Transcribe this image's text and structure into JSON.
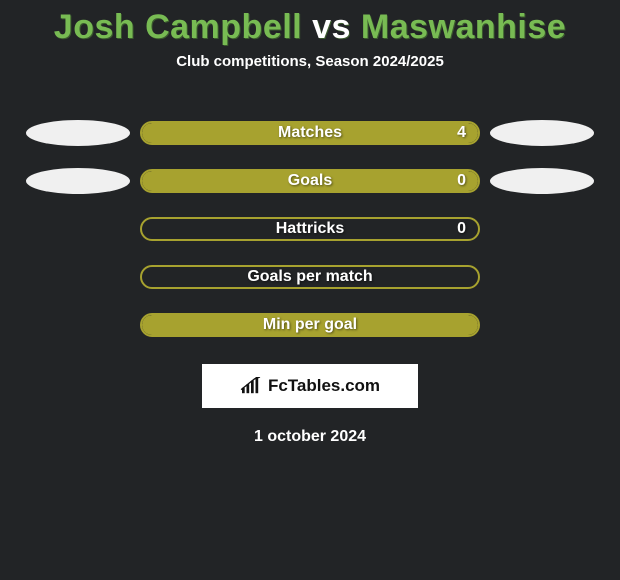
{
  "title_player1": "Josh Campbell",
  "title_vs": "vs",
  "title_player2": "Maswanhise",
  "title_color_p1": "#78bb53",
  "title_color_vs": "#ffffff",
  "title_color_p2": "#78bb53",
  "subtitle": "Club competitions, Season 2024/2025",
  "bar_border_color": "#a7a22f",
  "bar_fill_color": "#a7a22f",
  "ellipse_color": "#f0f0f0",
  "background_color": "#222426",
  "rows": [
    {
      "label": "Matches",
      "left_value": "",
      "right_value": "4",
      "fill_pct": 100,
      "show_left_ellipse": true,
      "show_right_ellipse": true
    },
    {
      "label": "Goals",
      "left_value": "",
      "right_value": "0",
      "fill_pct": 100,
      "show_left_ellipse": true,
      "show_right_ellipse": true
    },
    {
      "label": "Hattricks",
      "left_value": "",
      "right_value": "0",
      "fill_pct": 0,
      "show_left_ellipse": false,
      "show_right_ellipse": false
    },
    {
      "label": "Goals per match",
      "left_value": "",
      "right_value": "",
      "fill_pct": 0,
      "show_left_ellipse": false,
      "show_right_ellipse": false
    },
    {
      "label": "Min per goal",
      "left_value": "",
      "right_value": "",
      "fill_pct": 100,
      "show_left_ellipse": false,
      "show_right_ellipse": false
    }
  ],
  "branding_text": "FcTables.com",
  "date": "1 october 2024"
}
